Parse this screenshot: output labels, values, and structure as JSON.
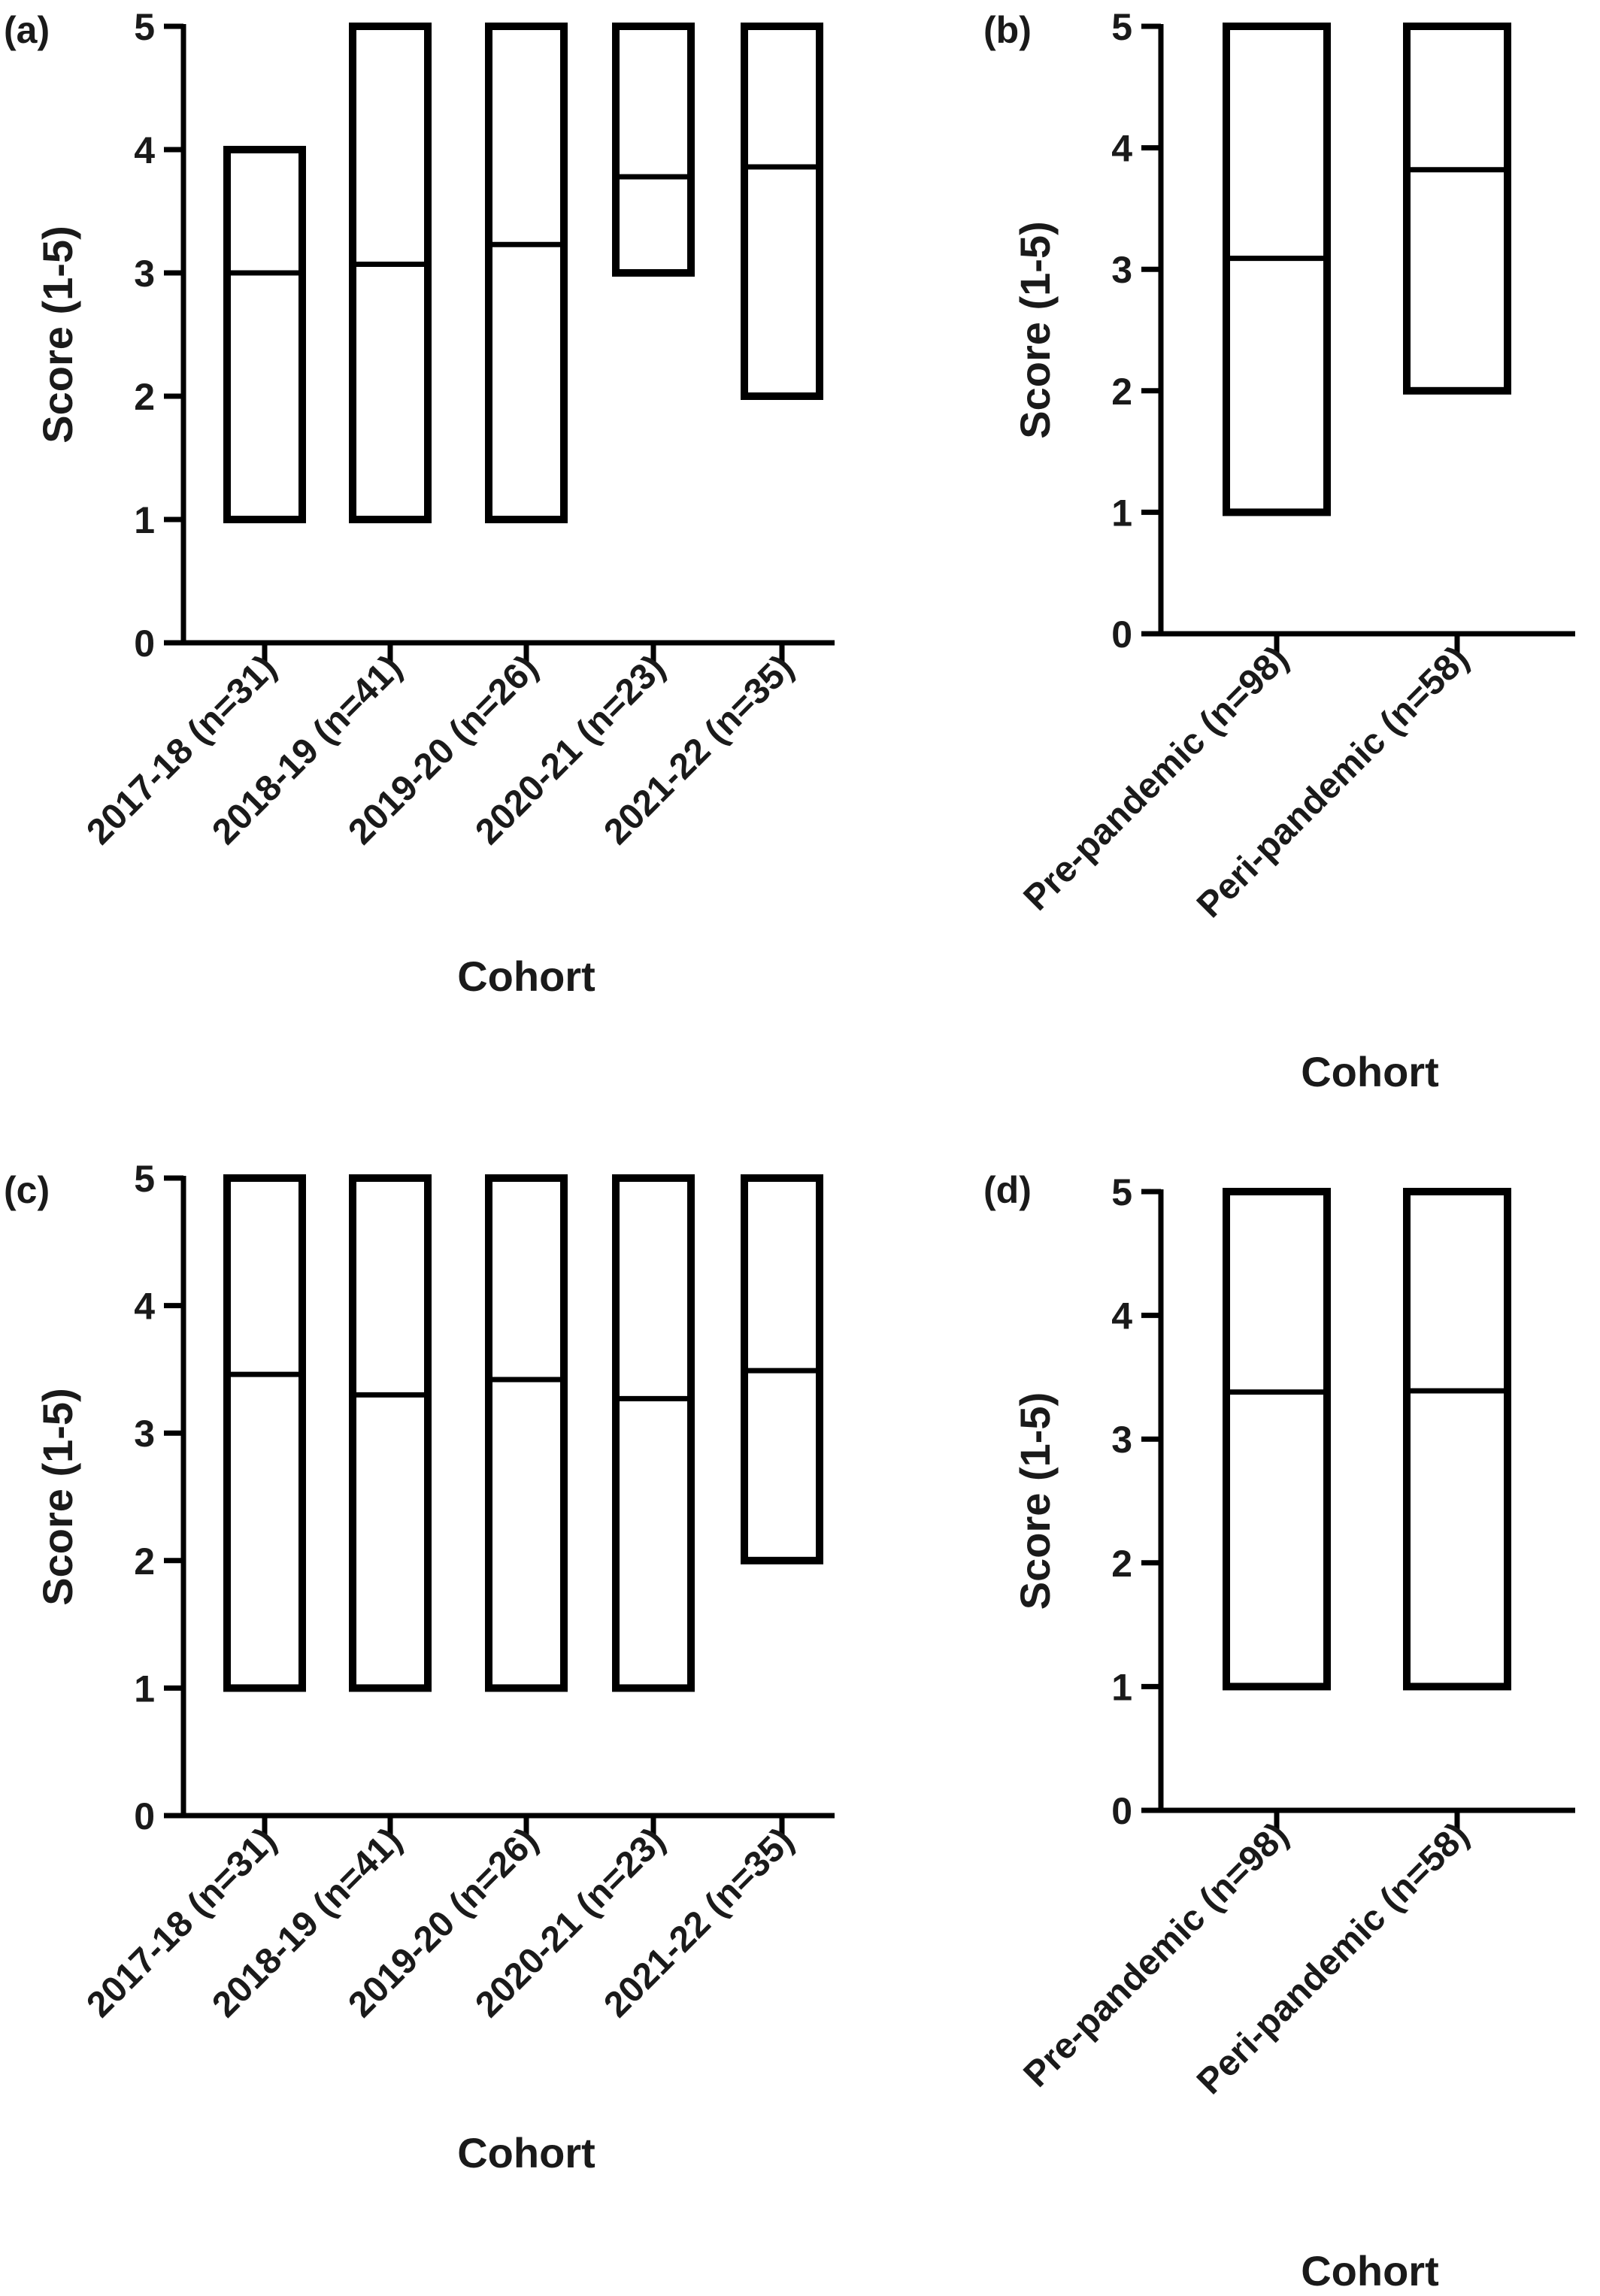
{
  "chart_data": [
    {
      "panel": "(a)",
      "type": "floating-bar",
      "xlabel": "Cohort",
      "ylabel": "Score (1-5)",
      "ylim": [
        0,
        5
      ],
      "yticks": [
        "0",
        "1",
        "2",
        "3",
        "4",
        "5"
      ],
      "categories": [
        "2017-18 (n=31)",
        "2018-19 (n=41)",
        "2019-20 (n=26)",
        "2020-21 (n=23)",
        "2021-22 (n=35)"
      ],
      "min": [
        1,
        1,
        1,
        3,
        2
      ],
      "max": [
        4,
        5,
        5,
        5,
        5
      ],
      "mean": [
        3.0,
        3.07,
        3.23,
        3.78,
        3.86
      ]
    },
    {
      "panel": "(b)",
      "type": "floating-bar",
      "xlabel": "Cohort",
      "ylabel": "Score (1-5)",
      "ylim": [
        0,
        5
      ],
      "yticks": [
        "0",
        "1",
        "2",
        "3",
        "4",
        "5"
      ],
      "categories": [
        "Pre-pandemic (n=98)",
        "Peri-pandemic (n=58)"
      ],
      "min": [
        1,
        2
      ],
      "max": [
        5,
        5
      ],
      "mean": [
        3.09,
        3.82
      ]
    },
    {
      "panel": "(c)",
      "type": "floating-bar",
      "xlabel": "Cohort",
      "ylabel": "Score (1-5)",
      "ylim": [
        0,
        5
      ],
      "yticks": [
        "0",
        "1",
        "2",
        "3",
        "4",
        "5"
      ],
      "categories": [
        "2017-18 (n=31)",
        "2018-19 (n=41)",
        "2019-20 (n=26)",
        "2020-21 (n=23)",
        "2021-22 (n=35)"
      ],
      "min": [
        1,
        1,
        1,
        1,
        2
      ],
      "max": [
        5,
        5,
        5,
        5,
        5
      ],
      "mean": [
        3.46,
        3.3,
        3.42,
        3.27,
        3.49
      ]
    },
    {
      "panel": "(d)",
      "type": "floating-bar",
      "xlabel": "Cohort",
      "ylabel": "Score (1-5)",
      "ylim": [
        0,
        5
      ],
      "yticks": [
        "0",
        "1",
        "2",
        "3",
        "4",
        "5"
      ],
      "categories": [
        "Pre-pandemic (n=98)",
        "Peri-pandemic (n=58)"
      ],
      "min": [
        1,
        1
      ],
      "max": [
        5,
        5
      ],
      "mean": [
        3.38,
        3.39
      ]
    }
  ]
}
